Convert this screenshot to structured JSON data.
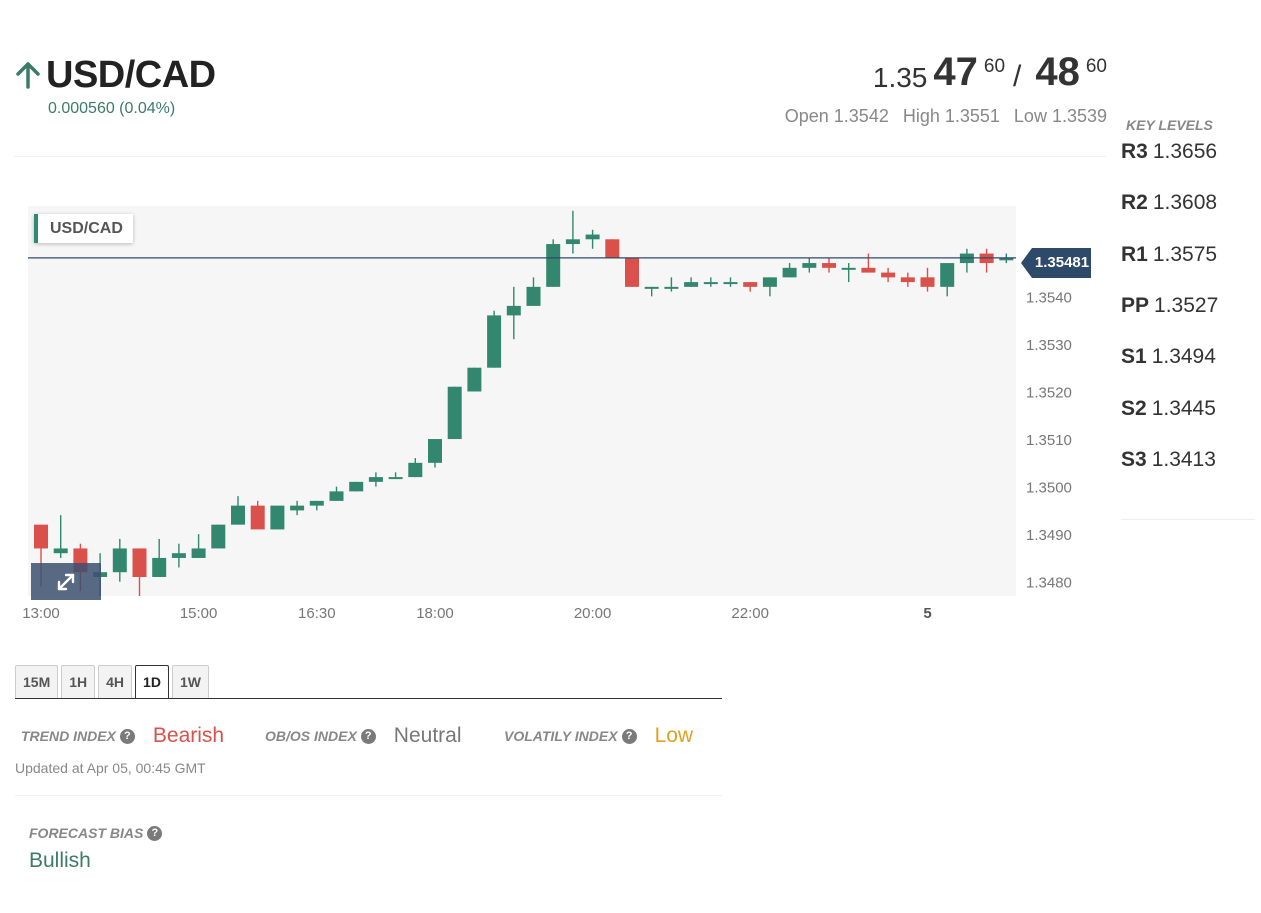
{
  "header": {
    "pair": "USD/CAD",
    "direction": "up",
    "change": "0.000560 (0.04%)",
    "bid": {
      "prefix": "1.35",
      "big": "47",
      "pip": "60"
    },
    "ask": {
      "big": "48",
      "pip": "60"
    },
    "slash": "/",
    "open": "Open 1.3542",
    "high": "High 1.3551",
    "low": "Low 1.3539"
  },
  "key_levels": {
    "title": "KEY LEVELS",
    "items": [
      {
        "name": "R3",
        "value": "1.3656"
      },
      {
        "name": "R2",
        "value": "1.3608"
      },
      {
        "name": "R1",
        "value": "1.3575"
      },
      {
        "name": "PP",
        "value": "1.3527"
      },
      {
        "name": "S1",
        "value": "1.3494"
      },
      {
        "name": "S2",
        "value": "1.3445"
      },
      {
        "name": "S3",
        "value": "1.3413"
      }
    ]
  },
  "chart": {
    "tag": "USD/CAD",
    "current_price_label": "1.35481",
    "expand_icon": "expand-icon"
  },
  "chart_data": {
    "type": "candlestick",
    "ylim": [
      1.3477,
      1.3559
    ],
    "y_ticks": [
      "1.3540",
      "1.3530",
      "1.3520",
      "1.3510",
      "1.3500",
      "1.3490",
      "1.3480"
    ],
    "x_ticks": [
      "13:00",
      "15:00",
      "16:30",
      "18:00",
      "20:00",
      "22:00",
      "5"
    ],
    "x_tick_positions": [
      0,
      8,
      14,
      20,
      28,
      36,
      45
    ],
    "current_price": 1.35481,
    "up_color": "#33876e",
    "down_color": "#d9514a",
    "candles": [
      {
        "o": 1.3492,
        "h": 1.3492,
        "l": 1.3479,
        "c": 1.3487
      },
      {
        "o": 1.3486,
        "h": 1.3494,
        "l": 1.3485,
        "c": 1.3487
      },
      {
        "o": 1.3487,
        "h": 1.3488,
        "l": 1.3478,
        "c": 1.3482
      },
      {
        "o": 1.3481,
        "h": 1.3486,
        "l": 1.3477,
        "c": 1.3482
      },
      {
        "o": 1.3482,
        "h": 1.3489,
        "l": 1.348,
        "c": 1.3487
      },
      {
        "o": 1.3487,
        "h": 1.3487,
        "l": 1.3477,
        "c": 1.3481
      },
      {
        "o": 1.3481,
        "h": 1.3489,
        "l": 1.3481,
        "c": 1.3485
      },
      {
        "o": 1.3485,
        "h": 1.3488,
        "l": 1.3483,
        "c": 1.3486
      },
      {
        "o": 1.3485,
        "h": 1.349,
        "l": 1.3485,
        "c": 1.3487
      },
      {
        "o": 1.3487,
        "h": 1.3492,
        "l": 1.3487,
        "c": 1.3492
      },
      {
        "o": 1.3492,
        "h": 1.3498,
        "l": 1.3492,
        "c": 1.3496
      },
      {
        "o": 1.3496,
        "h": 1.3497,
        "l": 1.3491,
        "c": 1.3491
      },
      {
        "o": 1.3491,
        "h": 1.3496,
        "l": 1.3491,
        "c": 1.3496
      },
      {
        "o": 1.3495,
        "h": 1.3497,
        "l": 1.3494,
        "c": 1.3496
      },
      {
        "o": 1.3496,
        "h": 1.3497,
        "l": 1.3495,
        "c": 1.3497
      },
      {
        "o": 1.3497,
        "h": 1.35,
        "l": 1.3497,
        "c": 1.3499
      },
      {
        "o": 1.3499,
        "h": 1.3501,
        "l": 1.3499,
        "c": 1.3501
      },
      {
        "o": 1.3501,
        "h": 1.3503,
        "l": 1.35,
        "c": 1.3502
      },
      {
        "o": 1.3502,
        "h": 1.3503,
        "l": 1.3502,
        "c": 1.3502
      },
      {
        "o": 1.3502,
        "h": 1.3506,
        "l": 1.3502,
        "c": 1.3505
      },
      {
        "o": 1.3505,
        "h": 1.351,
        "l": 1.3504,
        "c": 1.351
      },
      {
        "o": 1.351,
        "h": 1.3521,
        "l": 1.351,
        "c": 1.3521
      },
      {
        "o": 1.352,
        "h": 1.3525,
        "l": 1.352,
        "c": 1.3525
      },
      {
        "o": 1.3525,
        "h": 1.3537,
        "l": 1.3525,
        "c": 1.3536
      },
      {
        "o": 1.3536,
        "h": 1.3542,
        "l": 1.3531,
        "c": 1.3538
      },
      {
        "o": 1.3538,
        "h": 1.3544,
        "l": 1.3538,
        "c": 1.3542
      },
      {
        "o": 1.3542,
        "h": 1.3552,
        "l": 1.3542,
        "c": 1.3551
      },
      {
        "o": 1.3551,
        "h": 1.3558,
        "l": 1.3549,
        "c": 1.3552
      },
      {
        "o": 1.3552,
        "h": 1.3554,
        "l": 1.355,
        "c": 1.3553
      },
      {
        "o": 1.3552,
        "h": 1.3552,
        "l": 1.3548,
        "c": 1.3548
      },
      {
        "o": 1.3548,
        "h": 1.3548,
        "l": 1.3542,
        "c": 1.3542
      },
      {
        "o": 1.3542,
        "h": 1.3542,
        "l": 1.354,
        "c": 1.3542
      },
      {
        "o": 1.3542,
        "h": 1.3544,
        "l": 1.3541,
        "c": 1.3542
      },
      {
        "o": 1.3542,
        "h": 1.3544,
        "l": 1.3542,
        "c": 1.3543
      },
      {
        "o": 1.3543,
        "h": 1.3544,
        "l": 1.3542,
        "c": 1.3543
      },
      {
        "o": 1.3543,
        "h": 1.3544,
        "l": 1.3542,
        "c": 1.3543
      },
      {
        "o": 1.3543,
        "h": 1.3543,
        "l": 1.3541,
        "c": 1.3542
      },
      {
        "o": 1.3542,
        "h": 1.3544,
        "l": 1.354,
        "c": 1.3544
      },
      {
        "o": 1.3544,
        "h": 1.3547,
        "l": 1.3544,
        "c": 1.3546
      },
      {
        "o": 1.3546,
        "h": 1.3548,
        "l": 1.3545,
        "c": 1.3547
      },
      {
        "o": 1.3547,
        "h": 1.3548,
        "l": 1.3545,
        "c": 1.3546
      },
      {
        "o": 1.3546,
        "h": 1.3547,
        "l": 1.3543,
        "c": 1.3546
      },
      {
        "o": 1.3546,
        "h": 1.3549,
        "l": 1.3545,
        "c": 1.3545
      },
      {
        "o": 1.3545,
        "h": 1.3546,
        "l": 1.3543,
        "c": 1.3544
      },
      {
        "o": 1.3544,
        "h": 1.3545,
        "l": 1.3542,
        "c": 1.3543
      },
      {
        "o": 1.3544,
        "h": 1.3546,
        "l": 1.3541,
        "c": 1.3542
      },
      {
        "o": 1.3542,
        "h": 1.3547,
        "l": 1.354,
        "c": 1.3547
      },
      {
        "o": 1.3547,
        "h": 1.355,
        "l": 1.3545,
        "c": 1.3549
      },
      {
        "o": 1.3549,
        "h": 1.355,
        "l": 1.3545,
        "c": 1.3547
      },
      {
        "o": 1.3548,
        "h": 1.3549,
        "l": 1.3547,
        "c": 1.3548
      }
    ]
  },
  "timeframes": {
    "items": [
      "15M",
      "1H",
      "4H",
      "1D",
      "1W"
    ],
    "active": "1D"
  },
  "indices": {
    "trend_label": "TREND INDEX",
    "trend_value": "Bearish",
    "obos_label": "OB/OS INDEX",
    "obos_value": "Neutral",
    "vol_label": "VOLATILY INDEX",
    "vol_value": "Low",
    "help_glyph": "?",
    "colors": {
      "bearish": "#d9514a",
      "neutral": "#777777",
      "low": "#e0a020"
    }
  },
  "updated": "Updated at Apr 05, 00:45 GMT",
  "forecast": {
    "title": "FORECAST BIAS",
    "value": "Bullish"
  },
  "colors": {
    "accent_green": "#3c7b68",
    "price_tag_bg": "#2e4a6b"
  }
}
